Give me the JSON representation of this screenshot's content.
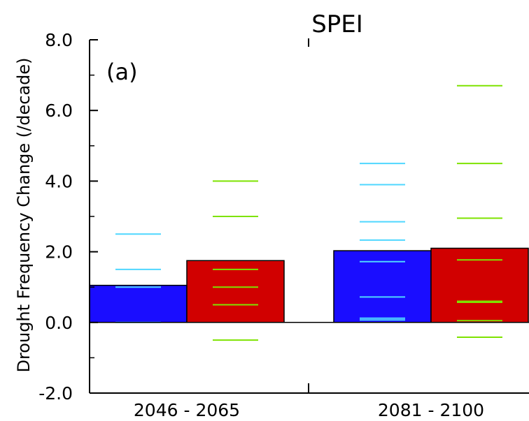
{
  "chart_data": {
    "type": "bar",
    "title": "SPEI",
    "panel_label": "(a)",
    "ylabel": "Drought Frequency Change (/decade)",
    "xlabel": "",
    "ylim": [
      -2.0,
      8.0
    ],
    "yticks": [
      -2.0,
      0.0,
      2.0,
      4.0,
      6.0,
      8.0
    ],
    "ytick_labels": [
      "-2.0",
      "0.0",
      "2.0",
      "4.0",
      "6.0",
      "8.0"
    ],
    "categories": [
      "2046 - 2065",
      "2081 - 2100"
    ],
    "grid": false,
    "series": [
      {
        "color": "#1a0dff",
        "marker_color": "#4fd7ff",
        "values": [
          1.05,
          2.03
        ],
        "members": [
          [
            2.5,
            1.5,
            1.0,
            0.0
          ],
          [
            4.5,
            3.9,
            2.85,
            2.33,
            1.72,
            0.72,
            0.12,
            0.07
          ]
        ]
      },
      {
        "color": "#d10000",
        "marker_color": "#7ee300",
        "values": [
          1.75,
          2.1
        ],
        "members": [
          [
            4.0,
            3.0,
            1.5,
            1.0,
            0.5,
            -0.5
          ],
          [
            6.7,
            4.5,
            2.95,
            1.77,
            0.6,
            0.57,
            0.05,
            -0.42
          ]
        ]
      }
    ]
  }
}
